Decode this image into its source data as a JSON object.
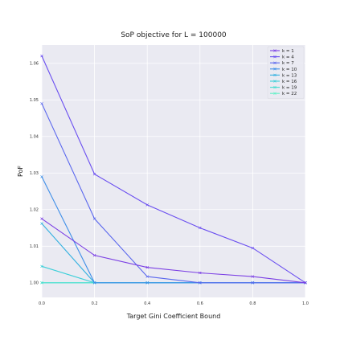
{
  "chart_data": {
    "type": "line",
    "title": "SoP objective for L = 100000",
    "xlabel": "Target Gini Coefficient Bound",
    "ylabel": "PoF",
    "xlim": [
      0.0,
      1.0
    ],
    "ylim": [
      0.996,
      1.065
    ],
    "x_ticks": [
      "0.0",
      "0.2",
      "0.4",
      "0.6",
      "0.8",
      "1.0"
    ],
    "y_ticks": [
      "1.00",
      "1.01",
      "1.02",
      "1.03",
      "1.04",
      "1.05",
      "1.06"
    ],
    "grid": true,
    "legend_position": "top-right",
    "x": [
      0.0,
      0.2,
      0.4,
      0.6,
      0.8,
      1.0
    ],
    "series": [
      {
        "name": "k = 1",
        "color": "#7b3fe4",
        "values": [
          1.0175,
          1.0075,
          1.0042,
          1.0027,
          1.0017,
          1.0
        ]
      },
      {
        "name": "k = 4",
        "color": "#6a4ef0",
        "values": [
          1.062,
          1.0297,
          1.0213,
          1.015,
          1.0095,
          1.0
        ]
      },
      {
        "name": "k = 7",
        "color": "#5a67ee",
        "values": [
          1.049,
          1.0175,
          1.0017,
          1.0,
          1.0,
          1.0
        ]
      },
      {
        "name": "k = 10",
        "color": "#3f8fe8",
        "values": [
          1.029,
          1.0,
          1.0,
          1.0,
          1.0,
          1.0
        ]
      },
      {
        "name": "k = 13",
        "color": "#35b1e0",
        "values": [
          1.0162,
          1.0,
          1.0,
          1.0,
          1.0,
          1.0
        ]
      },
      {
        "name": "k = 16",
        "color": "#3ccfd9",
        "values": [
          1.0045,
          1.0,
          1.0,
          1.0,
          1.0,
          1.0
        ]
      },
      {
        "name": "k = 19",
        "color": "#45ddd0",
        "values": [
          1.0,
          1.0,
          1.0,
          1.0,
          1.0,
          1.0
        ]
      },
      {
        "name": "k = 22",
        "color": "#66f0c8",
        "values": [
          1.0,
          1.0,
          1.0,
          1.0,
          1.0,
          1.0
        ]
      }
    ]
  }
}
